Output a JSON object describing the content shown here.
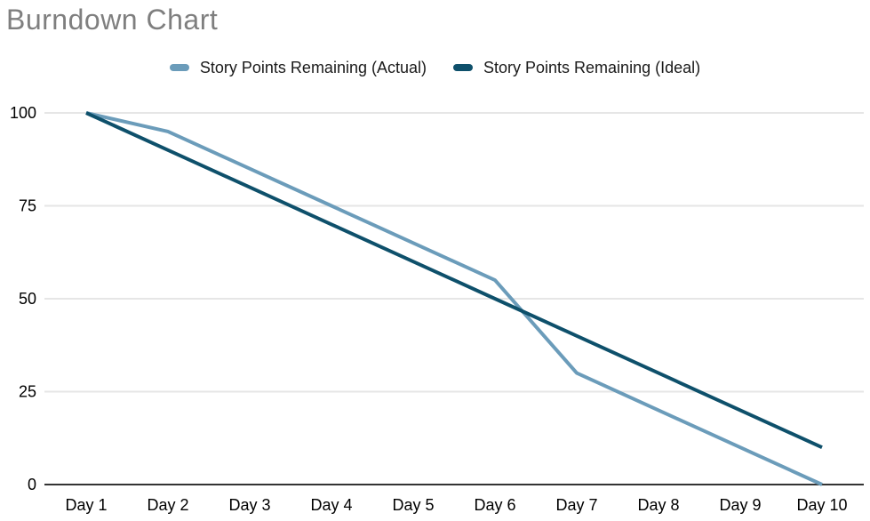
{
  "window": {
    "background": "#ffffff"
  },
  "chart_data": {
    "type": "line",
    "title": "Burndown Chart",
    "title_color": "#7f7f7f",
    "categories": [
      "Day 1",
      "Day 2",
      "Day 3",
      "Day 4",
      "Day 5",
      "Day 6",
      "Day 7",
      "Day 8",
      "Day 9",
      "Day 10"
    ],
    "series": [
      {
        "name": "Story Points Remaining (Actual)",
        "color": "#6b9cba",
        "values": [
          100,
          95,
          85,
          75,
          65,
          55,
          30,
          20,
          10,
          0
        ]
      },
      {
        "name": "Story Points Remaining (Ideal)",
        "color": "#0e506b",
        "values": [
          100,
          90,
          80,
          70,
          60,
          50,
          40,
          30,
          20,
          10
        ]
      }
    ],
    "xlabel": "",
    "ylabel": "",
    "ylim": [
      0,
      100
    ],
    "yticks": [
      0,
      25,
      50,
      75,
      100
    ],
    "grid": "horizontal-only",
    "gridline_color": "#e6e6e6",
    "axis_line_color": "#333333",
    "tick_label_color": "#000000",
    "tick_font_size": 18,
    "legend_position": "top",
    "line_width": 4
  }
}
